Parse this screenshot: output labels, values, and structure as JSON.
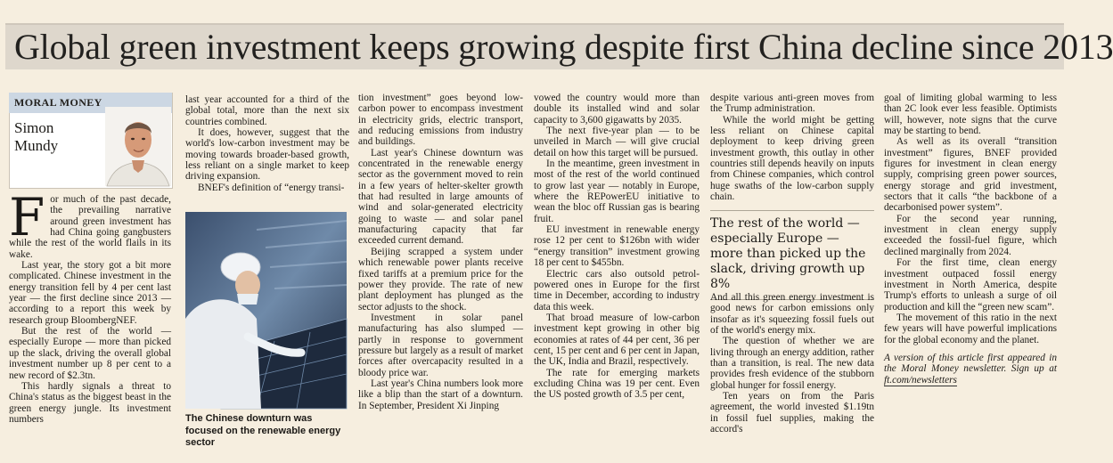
{
  "headline": "Global green investment keeps growing despite first China decline since 2013",
  "section_tag": "MORAL MONEY",
  "author": [
    "Simon",
    "Mundy"
  ],
  "col1": [
    {
      "dropcap": "F",
      "text": "or much of the past decade, the prevailing narrative around green investment has had China going gangbusters while the rest of the world flails in its wake."
    },
    "Last year, the story got a bit more complicated. Chinese investment in the energy transition fell by 4 per cent last year — the first decline since 2013 — according to a report this week by research group BloombergNEF.",
    "But the rest of the world — especially Europe — more than picked up the slack, driving the overall global investment number up 8 per cent to a new record of $2.3tn.",
    "This hardly signals a threat to China's status as the biggest beast in the green energy jungle. Its investment numbers"
  ],
  "col2_top": [
    "last year accounted for a third of the global total, more than the next six countries combined.",
    "It does, however, suggest that the world's low-carbon investment may be moving towards broader-based growth, less reliant on a single market to keep driving expansion.",
    "BNEF's definition of “energy transi-"
  ],
  "caption": "The Chinese downturn was focused on the renewable energy sector",
  "col3": [
    "tion investment” goes beyond low-carbon power to encompass investment in electricity grids, electric transport, and reducing emissions from industry and buildings.",
    "Last year's Chinese downturn was concentrated in the renewable energy sector as the government moved to rein in a few years of helter-skelter growth that had resulted in large amounts of wind and solar-generated electricity going to waste — and solar panel manufacturing capacity that far exceeded current demand.",
    "Beijing scrapped a system under which renewable power plants receive fixed tariffs at a premium price for the power they provide. The rate of new plant deployment has plunged as the sector adjusts to the shock.",
    "Investment in solar panel manufacturing has also slumped — partly in response to government pressure but largely as a result of market forces after overcapacity resulted in a bloody price war.",
    "Last year's China numbers look more like a blip than the start of a downturn. In September, President Xi Jinping"
  ],
  "col4": [
    "vowed the country would more than double its installed wind and solar capacity to 3,600 gigawatts by 2035.",
    "The next five-year plan — to be unveiled in March — will give crucial detail on how this target will be pursued.",
    "In the meantime, green investment in most of the rest of the world continued to grow last year — notably in Europe, where the REPowerEU initiative to wean the bloc off Russian gas is bearing fruit.",
    "EU investment in renewable energy rose 12 per cent to $126bn with wider “energy transition” investment growing 18 per cent to $455bn.",
    "Electric cars also outsold petrol-powered ones in Europe for the first time in December, according to industry data this week.",
    "That broad measure of low-carbon investment kept growing in other big economies at rates of 44 per cent, 36 per cent, 15 per cent and 6 per cent in Japan, the UK, India and Brazil, respectively.",
    "The rate for emerging markets excluding China was 19 per cent. Even the US posted growth of 3.5 per cent,"
  ],
  "col5_top": [
    "despite various anti-green moves from the Trump administration.",
    "While the world might be getting less reliant on Chinese capital deployment to keep driving green investment growth, this outlay in other countries still depends heavily on inputs from Chinese companies, which control huge swaths of the low-carbon supply chain."
  ],
  "pull_quote": "The rest of the world — especially Europe — more than picked up the slack, driving growth up 8%",
  "col5_bottom": [
    "And all this green energy investment is good news for carbon emissions only insofar as it's squeezing fossil fuels out of the world's energy mix.",
    "The question of whether we are living through an energy addition, rather than a transition, is real. The new data provides fresh evidence of the stubborn global hunger for fossil energy.",
    "Ten years on from the Paris agreement, the world invested $1.19tn in fossil fuel supplies, making the accord's"
  ],
  "col6": [
    "goal of limiting global warming to less than 2C look ever less feasible. Optimists will, however, note signs that the curve may be starting to bend.",
    "As well as its overall “transition investment” figures, BNEF provided figures for investment in clean energy supply, comprising green power sources, energy storage and grid investment, sectors that it calls “the backbone of a decarbonised power system”.",
    "For the second year running, investment in clean energy supply exceeded the fossil-fuel figure, which declined marginally from 2024.",
    "For the first time, clean energy investment outpaced fossil energy investment in North America, despite Trump's efforts to unleash a surge of oil production and kill the “green new scam”.",
    "The movement of this ratio in the next few years will have powerful implications for the global economy and the planet."
  ],
  "note": "A version of this article first appeared in the Moral Money newsletter. Sign up at",
  "note_link": "ft.com/newsletters"
}
